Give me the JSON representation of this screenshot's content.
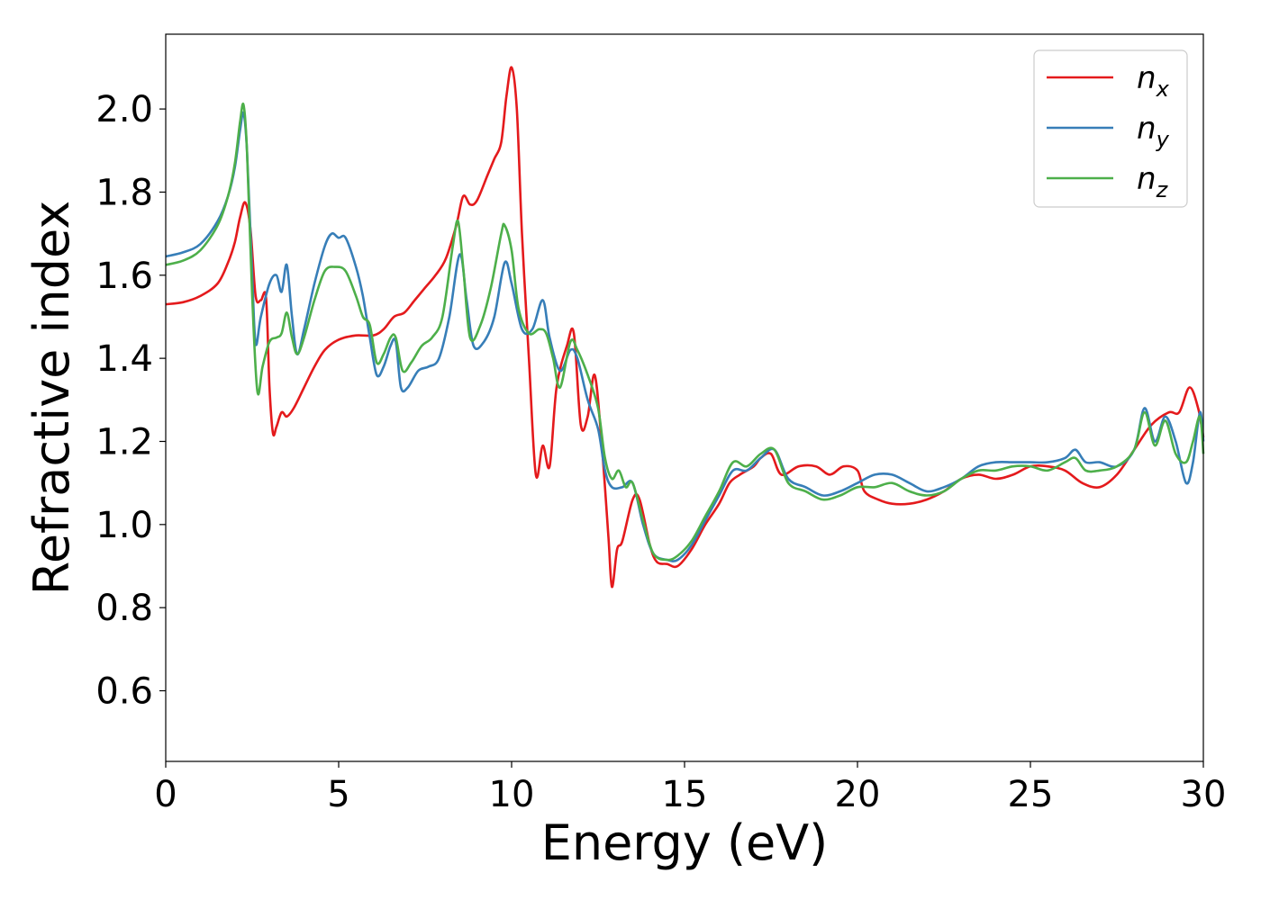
{
  "chart_data": {
    "type": "line",
    "title": "",
    "xlabel": "Energy (eV)",
    "ylabel": "Refractive index",
    "xlim": [
      0,
      30
    ],
    "ylim": [
      0.43,
      2.18
    ],
    "xticks": [
      0,
      5,
      10,
      15,
      20,
      25,
      30
    ],
    "xtick_labels": [
      "0",
      "5",
      "10",
      "15",
      "20",
      "25",
      "30"
    ],
    "yticks": [
      0.6,
      0.8,
      1.0,
      1.2,
      1.4,
      1.6,
      1.8,
      2.0
    ],
    "ytick_labels": [
      "0.6",
      "0.8",
      "1.0",
      "1.2",
      "1.4",
      "1.6",
      "1.8",
      "2.0"
    ],
    "grid": false,
    "legend_position": "top-right",
    "series": [
      {
        "name": "n_x",
        "legend_base": "n",
        "legend_sub": "x",
        "color": "#e41a1c",
        "points": [
          [
            0,
            1.53
          ],
          [
            0.5,
            1.535
          ],
          [
            1.0,
            1.55
          ],
          [
            1.5,
            1.58
          ],
          [
            1.8,
            1.63
          ],
          [
            2.0,
            1.68
          ],
          [
            2.15,
            1.74
          ],
          [
            2.3,
            1.775
          ],
          [
            2.45,
            1.71
          ],
          [
            2.6,
            1.55
          ],
          [
            2.75,
            1.54
          ],
          [
            2.9,
            1.545
          ],
          [
            3.0,
            1.33
          ],
          [
            3.1,
            1.22
          ],
          [
            3.2,
            1.235
          ],
          [
            3.35,
            1.27
          ],
          [
            3.5,
            1.26
          ],
          [
            3.7,
            1.28
          ],
          [
            4.0,
            1.33
          ],
          [
            4.3,
            1.38
          ],
          [
            4.6,
            1.42
          ],
          [
            5.0,
            1.445
          ],
          [
            5.5,
            1.455
          ],
          [
            6.0,
            1.455
          ],
          [
            6.3,
            1.47
          ],
          [
            6.6,
            1.5
          ],
          [
            6.9,
            1.51
          ],
          [
            7.2,
            1.54
          ],
          [
            7.5,
            1.57
          ],
          [
            7.8,
            1.6
          ],
          [
            8.1,
            1.64
          ],
          [
            8.4,
            1.72
          ],
          [
            8.6,
            1.79
          ],
          [
            8.8,
            1.77
          ],
          [
            9.0,
            1.78
          ],
          [
            9.3,
            1.84
          ],
          [
            9.5,
            1.88
          ],
          [
            9.7,
            1.92
          ],
          [
            9.85,
            2.03
          ],
          [
            10.0,
            2.1
          ],
          [
            10.15,
            2.0
          ],
          [
            10.3,
            1.7
          ],
          [
            10.5,
            1.4
          ],
          [
            10.7,
            1.12
          ],
          [
            10.9,
            1.19
          ],
          [
            11.1,
            1.14
          ],
          [
            11.3,
            1.33
          ],
          [
            11.6,
            1.43
          ],
          [
            11.8,
            1.46
          ],
          [
            12.0,
            1.24
          ],
          [
            12.2,
            1.26
          ],
          [
            12.4,
            1.36
          ],
          [
            12.6,
            1.2
          ],
          [
            12.8,
            0.97
          ],
          [
            12.9,
            0.85
          ],
          [
            13.05,
            0.94
          ],
          [
            13.2,
            0.96
          ],
          [
            13.5,
            1.06
          ],
          [
            13.7,
            1.06
          ],
          [
            14.0,
            0.95
          ],
          [
            14.2,
            0.91
          ],
          [
            14.5,
            0.905
          ],
          [
            14.8,
            0.9
          ],
          [
            15.2,
            0.94
          ],
          [
            15.6,
            1.0
          ],
          [
            16.0,
            1.05
          ],
          [
            16.3,
            1.1
          ],
          [
            16.6,
            1.12
          ],
          [
            17.0,
            1.14
          ],
          [
            17.2,
            1.16
          ],
          [
            17.5,
            1.17
          ],
          [
            17.8,
            1.12
          ],
          [
            18.3,
            1.14
          ],
          [
            18.8,
            1.14
          ],
          [
            19.2,
            1.12
          ],
          [
            19.6,
            1.14
          ],
          [
            20.0,
            1.13
          ],
          [
            20.2,
            1.08
          ],
          [
            20.6,
            1.06
          ],
          [
            21.0,
            1.05
          ],
          [
            21.5,
            1.05
          ],
          [
            22.0,
            1.06
          ],
          [
            22.5,
            1.08
          ],
          [
            23.0,
            1.11
          ],
          [
            23.5,
            1.12
          ],
          [
            24.0,
            1.11
          ],
          [
            24.5,
            1.12
          ],
          [
            25.0,
            1.14
          ],
          [
            25.5,
            1.14
          ],
          [
            26.0,
            1.13
          ],
          [
            26.5,
            1.1
          ],
          [
            27.0,
            1.09
          ],
          [
            27.5,
            1.12
          ],
          [
            28.0,
            1.18
          ],
          [
            28.5,
            1.24
          ],
          [
            29.0,
            1.27
          ],
          [
            29.3,
            1.27
          ],
          [
            29.6,
            1.33
          ],
          [
            29.85,
            1.28
          ],
          [
            30.0,
            1.21
          ]
        ]
      },
      {
        "name": "n_y",
        "legend_base": "n",
        "legend_sub": "y",
        "color": "#377eb8",
        "points": [
          [
            0,
            1.645
          ],
          [
            0.5,
            1.655
          ],
          [
            1.0,
            1.675
          ],
          [
            1.5,
            1.73
          ],
          [
            1.8,
            1.79
          ],
          [
            2.0,
            1.86
          ],
          [
            2.15,
            1.95
          ],
          [
            2.25,
            1.99
          ],
          [
            2.35,
            1.9
          ],
          [
            2.5,
            1.6
          ],
          [
            2.6,
            1.435
          ],
          [
            2.75,
            1.5
          ],
          [
            3.0,
            1.58
          ],
          [
            3.2,
            1.6
          ],
          [
            3.35,
            1.56
          ],
          [
            3.5,
            1.625
          ],
          [
            3.65,
            1.5
          ],
          [
            3.8,
            1.41
          ],
          [
            4.0,
            1.47
          ],
          [
            4.3,
            1.58
          ],
          [
            4.6,
            1.67
          ],
          [
            4.8,
            1.7
          ],
          [
            5.0,
            1.69
          ],
          [
            5.2,
            1.69
          ],
          [
            5.5,
            1.62
          ],
          [
            5.7,
            1.55
          ],
          [
            5.9,
            1.45
          ],
          [
            6.1,
            1.36
          ],
          [
            6.3,
            1.38
          ],
          [
            6.5,
            1.43
          ],
          [
            6.65,
            1.44
          ],
          [
            6.8,
            1.33
          ],
          [
            7.0,
            1.33
          ],
          [
            7.3,
            1.37
          ],
          [
            7.6,
            1.38
          ],
          [
            7.9,
            1.4
          ],
          [
            8.2,
            1.5
          ],
          [
            8.5,
            1.65
          ],
          [
            8.7,
            1.54
          ],
          [
            8.9,
            1.43
          ],
          [
            9.2,
            1.44
          ],
          [
            9.5,
            1.5
          ],
          [
            9.8,
            1.63
          ],
          [
            10.0,
            1.58
          ],
          [
            10.3,
            1.47
          ],
          [
            10.6,
            1.47
          ],
          [
            10.9,
            1.54
          ],
          [
            11.1,
            1.45
          ],
          [
            11.4,
            1.37
          ],
          [
            11.7,
            1.42
          ],
          [
            11.9,
            1.4
          ],
          [
            12.2,
            1.3
          ],
          [
            12.5,
            1.23
          ],
          [
            12.7,
            1.13
          ],
          [
            12.9,
            1.09
          ],
          [
            13.2,
            1.09
          ],
          [
            13.5,
            1.1
          ],
          [
            13.8,
            1.0
          ],
          [
            14.1,
            0.93
          ],
          [
            14.5,
            0.915
          ],
          [
            14.8,
            0.915
          ],
          [
            15.2,
            0.95
          ],
          [
            15.6,
            1.01
          ],
          [
            16.0,
            1.07
          ],
          [
            16.4,
            1.13
          ],
          [
            16.8,
            1.13
          ],
          [
            17.2,
            1.16
          ],
          [
            17.6,
            1.18
          ],
          [
            18.0,
            1.11
          ],
          [
            18.5,
            1.09
          ],
          [
            19.0,
            1.07
          ],
          [
            19.5,
            1.08
          ],
          [
            20.0,
            1.1
          ],
          [
            20.5,
            1.12
          ],
          [
            21.0,
            1.12
          ],
          [
            21.5,
            1.1
          ],
          [
            22.0,
            1.08
          ],
          [
            22.5,
            1.09
          ],
          [
            23.0,
            1.11
          ],
          [
            23.5,
            1.14
          ],
          [
            24.0,
            1.15
          ],
          [
            24.5,
            1.15
          ],
          [
            25.0,
            1.15
          ],
          [
            25.5,
            1.15
          ],
          [
            26.0,
            1.16
          ],
          [
            26.3,
            1.18
          ],
          [
            26.6,
            1.15
          ],
          [
            27.0,
            1.15
          ],
          [
            27.5,
            1.14
          ],
          [
            28.0,
            1.18
          ],
          [
            28.3,
            1.28
          ],
          [
            28.6,
            1.2
          ],
          [
            28.9,
            1.26
          ],
          [
            29.2,
            1.2
          ],
          [
            29.5,
            1.1
          ],
          [
            29.7,
            1.15
          ],
          [
            29.9,
            1.27
          ],
          [
            30.0,
            1.2
          ]
        ]
      },
      {
        "name": "n_z",
        "legend_base": "n",
        "legend_sub": "z",
        "color": "#4daf4a",
        "points": [
          [
            0,
            1.625
          ],
          [
            0.5,
            1.635
          ],
          [
            1.0,
            1.66
          ],
          [
            1.5,
            1.72
          ],
          [
            1.8,
            1.79
          ],
          [
            2.0,
            1.87
          ],
          [
            2.15,
            1.97
          ],
          [
            2.25,
            2.01
          ],
          [
            2.35,
            1.9
          ],
          [
            2.5,
            1.55
          ],
          [
            2.65,
            1.32
          ],
          [
            2.8,
            1.38
          ],
          [
            3.0,
            1.44
          ],
          [
            3.2,
            1.45
          ],
          [
            3.35,
            1.46
          ],
          [
            3.5,
            1.51
          ],
          [
            3.65,
            1.45
          ],
          [
            3.8,
            1.41
          ],
          [
            4.0,
            1.45
          ],
          [
            4.3,
            1.54
          ],
          [
            4.6,
            1.61
          ],
          [
            4.9,
            1.62
          ],
          [
            5.2,
            1.61
          ],
          [
            5.5,
            1.55
          ],
          [
            5.7,
            1.5
          ],
          [
            5.9,
            1.48
          ],
          [
            6.1,
            1.39
          ],
          [
            6.3,
            1.41
          ],
          [
            6.5,
            1.45
          ],
          [
            6.65,
            1.45
          ],
          [
            6.85,
            1.37
          ],
          [
            7.1,
            1.39
          ],
          [
            7.4,
            1.43
          ],
          [
            7.7,
            1.45
          ],
          [
            8.0,
            1.5
          ],
          [
            8.3,
            1.67
          ],
          [
            8.45,
            1.73
          ],
          [
            8.6,
            1.62
          ],
          [
            8.8,
            1.45
          ],
          [
            9.1,
            1.48
          ],
          [
            9.4,
            1.57
          ],
          [
            9.7,
            1.7
          ],
          [
            9.8,
            1.72
          ],
          [
            10.0,
            1.66
          ],
          [
            10.2,
            1.52
          ],
          [
            10.5,
            1.46
          ],
          [
            10.8,
            1.47
          ],
          [
            11.0,
            1.46
          ],
          [
            11.2,
            1.4
          ],
          [
            11.4,
            1.33
          ],
          [
            11.7,
            1.44
          ],
          [
            11.9,
            1.42
          ],
          [
            12.2,
            1.36
          ],
          [
            12.5,
            1.28
          ],
          [
            12.7,
            1.16
          ],
          [
            12.9,
            1.11
          ],
          [
            13.1,
            1.13
          ],
          [
            13.3,
            1.09
          ],
          [
            13.5,
            1.1
          ],
          [
            13.8,
            1.01
          ],
          [
            14.1,
            0.93
          ],
          [
            14.5,
            0.915
          ],
          [
            14.8,
            0.925
          ],
          [
            15.2,
            0.96
          ],
          [
            15.6,
            1.02
          ],
          [
            16.0,
            1.08
          ],
          [
            16.4,
            1.15
          ],
          [
            16.8,
            1.14
          ],
          [
            17.2,
            1.17
          ],
          [
            17.6,
            1.18
          ],
          [
            18.0,
            1.1
          ],
          [
            18.5,
            1.08
          ],
          [
            19.0,
            1.06
          ],
          [
            19.5,
            1.07
          ],
          [
            20.0,
            1.09
          ],
          [
            20.5,
            1.09
          ],
          [
            21.0,
            1.1
          ],
          [
            21.5,
            1.08
          ],
          [
            22.0,
            1.07
          ],
          [
            22.5,
            1.08
          ],
          [
            23.0,
            1.11
          ],
          [
            23.5,
            1.13
          ],
          [
            24.0,
            1.13
          ],
          [
            24.5,
            1.14
          ],
          [
            25.0,
            1.14
          ],
          [
            25.5,
            1.13
          ],
          [
            26.0,
            1.15
          ],
          [
            26.3,
            1.16
          ],
          [
            26.6,
            1.13
          ],
          [
            27.0,
            1.13
          ],
          [
            27.5,
            1.14
          ],
          [
            28.0,
            1.18
          ],
          [
            28.3,
            1.27
          ],
          [
            28.6,
            1.19
          ],
          [
            28.9,
            1.25
          ],
          [
            29.2,
            1.17
          ],
          [
            29.5,
            1.15
          ],
          [
            29.7,
            1.2
          ],
          [
            29.9,
            1.26
          ],
          [
            30.0,
            1.17
          ]
        ]
      }
    ]
  }
}
